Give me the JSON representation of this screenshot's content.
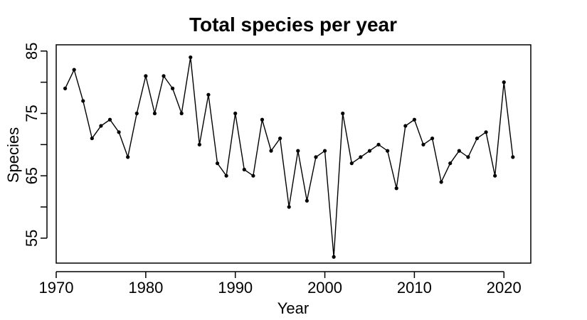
{
  "chart_data": {
    "type": "line",
    "title": "Total species per year",
    "xlabel": "Year",
    "ylabel": "Species",
    "xlim": [
      1970,
      2023
    ],
    "ylim": [
      51,
      86
    ],
    "x_ticks": [
      1970,
      1980,
      1990,
      2000,
      2010,
      2020
    ],
    "y_ticks": [
      55,
      60,
      65,
      70,
      75,
      80,
      85
    ],
    "y_tick_labels": [
      "55",
      "",
      "65",
      "",
      "75",
      "",
      "85"
    ],
    "grid": false,
    "x": [
      1971,
      1972,
      1973,
      1974,
      1975,
      1976,
      1977,
      1978,
      1979,
      1980,
      1981,
      1982,
      1983,
      1984,
      1985,
      1986,
      1987,
      1988,
      1989,
      1990,
      1991,
      1992,
      1993,
      1994,
      1995,
      1996,
      1997,
      1998,
      1999,
      2000,
      2001,
      2002,
      2003,
      2004,
      2005,
      2006,
      2007,
      2008,
      2009,
      2010,
      2011,
      2012,
      2013,
      2014,
      2015,
      2016,
      2017,
      2018,
      2019,
      2020,
      2021
    ],
    "series": [
      {
        "values": [
          79,
          82,
          77,
          71,
          73,
          74,
          72,
          68,
          75,
          81,
          75,
          81,
          79,
          75,
          84,
          70,
          78,
          67,
          65,
          75,
          66,
          65,
          74,
          69,
          71,
          60,
          69,
          61,
          68,
          69,
          52,
          75,
          67,
          68,
          69,
          70,
          69,
          63,
          73,
          74,
          70,
          71,
          64,
          67,
          69,
          68,
          71,
          72,
          65,
          80,
          68
        ]
      }
    ]
  }
}
